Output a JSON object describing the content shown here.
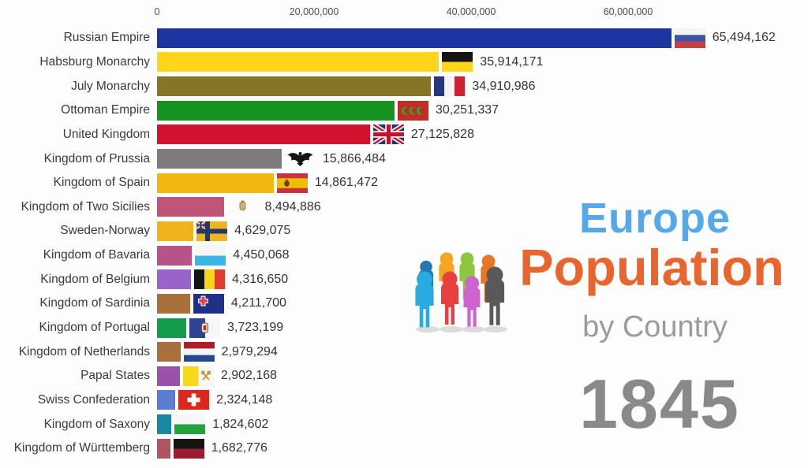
{
  "title_block": {
    "title_line1": "Europe",
    "title_line2": "Population",
    "title_line3": "by Country",
    "year": "1845",
    "colors": {
      "line1": "#56a9e8",
      "line2": "#e8662d",
      "line3": "#9b9b9b",
      "year": "#8b888b"
    },
    "people_icon": {
      "name": "people-group-icon",
      "back_row_colors": [
        "#2277b5",
        "#f5a623",
        "#8dc63f",
        "#e87722"
      ],
      "front_row_colors": [
        "#29abe2",
        "#e84040",
        "#cf63d0",
        "#58595b"
      ],
      "shadow_color": "#dcdcdc"
    }
  },
  "chart_data": {
    "type": "bar",
    "orientation": "horizontal",
    "title": "Europe Population by Country",
    "year_shown": "1845",
    "xlabel": "",
    "ylabel": "",
    "grid": false,
    "legend_position": "none",
    "x_axis": {
      "ticks": [
        {
          "label": "0",
          "value": 0
        },
        {
          "label": "20,000,000",
          "value": 20000000
        },
        {
          "label": "40,000,000",
          "value": 40000000
        },
        {
          "label": "60,000,000",
          "value": 60000000
        }
      ],
      "range": [
        0,
        80000000
      ]
    },
    "rows": [
      {
        "rank": 1,
        "label": "Russian Empire",
        "value": 65494162,
        "value_label": "65,494,162",
        "bar_color": "#1b35a1",
        "flag": "russian-empire"
      },
      {
        "rank": 2,
        "label": "Habsburg Monarchy",
        "value": 35914171,
        "value_label": "35,914,171",
        "bar_color": "#ffd61b",
        "flag": "habsburg-monarchy"
      },
      {
        "rank": 3,
        "label": "July Monarchy",
        "value": 34910986,
        "value_label": "34,910,986",
        "bar_color": "#867427",
        "flag": "july-monarchy-france"
      },
      {
        "rank": 4,
        "label": "Ottoman Empire",
        "value": 30251337,
        "value_label": "30,251,337",
        "bar_color": "#17931f",
        "flag": "ottoman-empire"
      },
      {
        "rank": 5,
        "label": "United Kingdom",
        "value": 27125828,
        "value_label": "27,125,828",
        "bar_color": "#d2122e",
        "flag": "united-kingdom"
      },
      {
        "rank": 6,
        "label": "Kingdom of Prussia",
        "value": 15866484,
        "value_label": "15,866,484",
        "bar_color": "#7e7a7e",
        "flag": "kingdom-of-prussia"
      },
      {
        "rank": 7,
        "label": "Kingdom of Spain",
        "value": 14861472,
        "value_label": "14,861,472",
        "bar_color": "#f1b90e",
        "flag": "kingdom-of-spain"
      },
      {
        "rank": 8,
        "label": "Kingdom of Two Sicilies",
        "value": 8494886,
        "value_label": "8,494,886",
        "bar_color": "#bf5578",
        "flag": "kingdom-of-two-sicilies"
      },
      {
        "rank": 9,
        "label": "Sweden-Norway",
        "value": 4629075,
        "value_label": "4,629,075",
        "bar_color": "#efb41d",
        "flag": "sweden-norway"
      },
      {
        "rank": 10,
        "label": "Kingdom of Bavaria",
        "value": 4450068,
        "value_label": "4,450,068",
        "bar_color": "#b8538a",
        "flag": "kingdom-of-bavaria"
      },
      {
        "rank": 11,
        "label": "Kingdom of Belgium",
        "value": 4316650,
        "value_label": "4,316,650",
        "bar_color": "#9a63c8",
        "flag": "kingdom-of-belgium"
      },
      {
        "rank": 12,
        "label": "Kingdom of Sardinia",
        "value": 4211700,
        "value_label": "4,211,700",
        "bar_color": "#a9703d",
        "flag": "kingdom-of-sardinia"
      },
      {
        "rank": 13,
        "label": "Kingdom of Portugal",
        "value": 3723199,
        "value_label": "3,723,199",
        "bar_color": "#149b4b",
        "flag": "kingdom-of-portugal"
      },
      {
        "rank": 14,
        "label": "Kingdom of Netherlands",
        "value": 2979294,
        "value_label": "2,979,294",
        "bar_color": "#a9703d",
        "flag": "kingdom-of-netherlands"
      },
      {
        "rank": 15,
        "label": "Papal States",
        "value": 2902168,
        "value_label": "2,902,168",
        "bar_color": "#9a52a8",
        "flag": "papal-states"
      },
      {
        "rank": 16,
        "label": "Swiss Confederation",
        "value": 2324148,
        "value_label": "2,324,148",
        "bar_color": "#5b7cd0",
        "flag": "swiss-confederation"
      },
      {
        "rank": 17,
        "label": "Kingdom of Saxony",
        "value": 1824602,
        "value_label": "1,824,602",
        "bar_color": "#1889a0",
        "flag": "kingdom-of-saxony"
      },
      {
        "rank": 18,
        "label": "Kingdom of Württemberg",
        "value": 1682776,
        "value_label": "1,682,776",
        "bar_color": "#b05560",
        "flag": "kingdom-of-wuerttemberg"
      }
    ]
  }
}
